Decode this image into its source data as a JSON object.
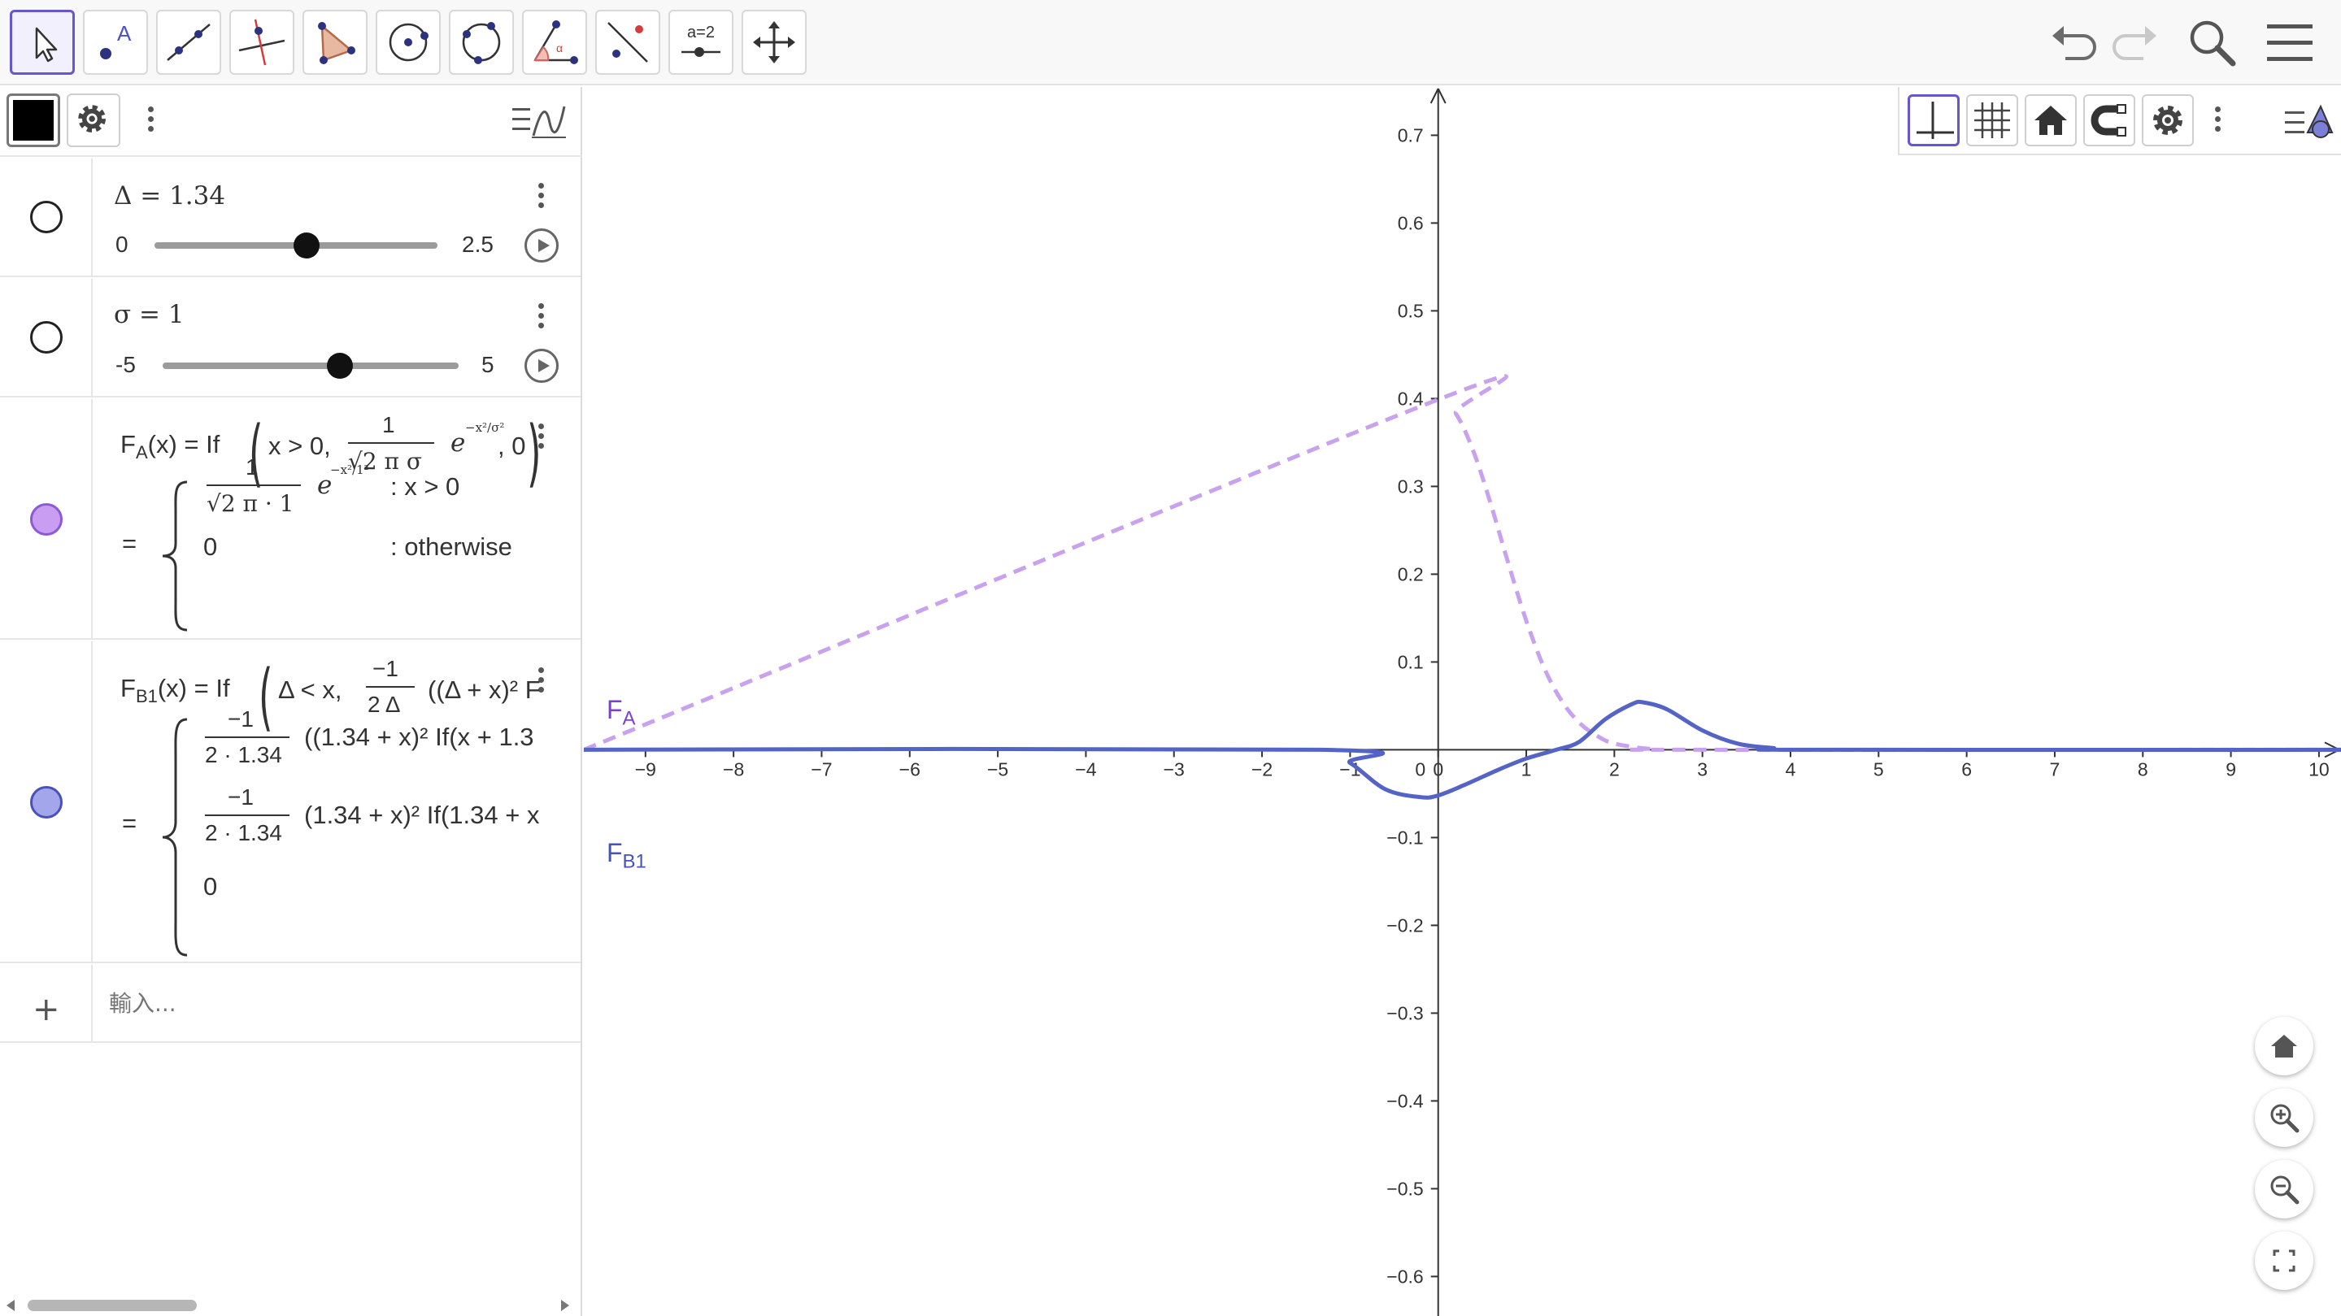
{
  "algebra": {
    "sliders": [
      {
        "symbol": "Δ",
        "value": "1.34",
        "min": "0",
        "max": "2.5",
        "fraction": 0.536
      },
      {
        "symbol": "σ",
        "value": "1",
        "min": "-5",
        "max": "5",
        "fraction": 0.6
      }
    ],
    "fa": {
      "def_name": "F",
      "def_sub": "A",
      "def_rest": "(x)  =  If",
      "def_cond": "x > 0,",
      "def_num": "1",
      "def_den": "√2 π σ",
      "def_e": "e",
      "def_exp": "−x²/σ²",
      "def_tail": ", 0",
      "res_eq": "=",
      "res_num": "1",
      "res_den": "√2 π · 1",
      "res_e": "e",
      "res_exp": "−x²/1²",
      "res_cond1": ": x > 0",
      "res_zero": "0",
      "res_cond2": ": otherwise",
      "color": "#c99df2"
    },
    "fb": {
      "def_name": "F",
      "def_sub": "B1",
      "def_rest": "(x)  =  If",
      "def_cond": "Δ < x,",
      "def_num": "−1",
      "def_den": "2 Δ",
      "def_body": "((Δ + x)² F",
      "res_eq": "=",
      "res_num1": "−1",
      "res_den1": "2 · 1.34",
      "res_body1": "((1.34 + x)² If(x + 1.3",
      "res_num2": "−1",
      "res_den2": "2 · 1.34",
      "res_body2": "(1.34 + x)² If(1.34 + x",
      "res_zero": "0",
      "color": "#a4a6ec"
    },
    "input_placeholder": "輸入..."
  },
  "graph": {
    "labels": {
      "fa_name": "F",
      "fa_sub": "A",
      "fb_name": "F",
      "fb_sub": "B1"
    },
    "colors": {
      "fa": "#c8a2ee",
      "fb": "#5463c6",
      "fa_label": "#7c3fd6",
      "fb_label": "#4653b8"
    }
  },
  "chart_data": {
    "type": "line",
    "xlim": [
      -9.7,
      10.25
    ],
    "ylim": [
      -0.645,
      0.755
    ],
    "x_ticks": [
      "-9",
      "-8",
      "-7",
      "-6",
      "-5",
      "-4",
      "-3",
      "-2",
      "-1",
      "0",
      "1",
      "2",
      "3",
      "4",
      "5",
      "6",
      "7",
      "8",
      "9",
      "10"
    ],
    "y_ticks": [
      "0.7",
      "0.6",
      "0.5",
      "0.4",
      "0.3",
      "0.2",
      "0.1",
      "-0.1",
      "-0.2",
      "-0.3",
      "-0.4",
      "-0.5",
      "-0.6"
    ],
    "series": [
      {
        "name": "F_A",
        "style": "dashed",
        "x": [
          -9.7,
          0,
          0.2,
          0.4,
          0.6,
          0.8,
          1.0,
          1.2,
          1.4,
          1.6,
          1.8,
          2.0,
          2.4,
          2.8,
          10.25
        ],
        "y": [
          0,
          0.399,
          0.383,
          0.34,
          0.279,
          0.211,
          0.147,
          0.094,
          0.056,
          0.031,
          0.016,
          0.007,
          0.001,
          0,
          0
        ]
      },
      {
        "name": "F_B1",
        "style": "solid",
        "x": [
          -9.7,
          -1.34,
          -1.0,
          -0.6,
          -0.2,
          0.0,
          0.3,
          0.7,
          1.0,
          1.34,
          1.6,
          1.9,
          2.2,
          2.33,
          2.6,
          3.0,
          3.4,
          3.8,
          4.2,
          10.25
        ],
        "y": [
          0,
          0,
          -0.015,
          -0.045,
          -0.054,
          -0.052,
          -0.04,
          -0.022,
          -0.01,
          0,
          0.009,
          0.035,
          0.052,
          0.054,
          0.046,
          0.022,
          0.007,
          0.002,
          0,
          0
        ]
      }
    ]
  }
}
